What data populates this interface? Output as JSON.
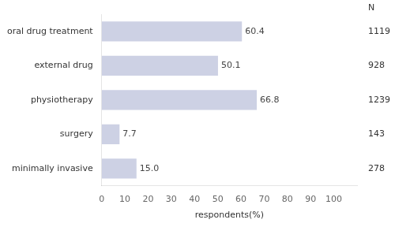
{
  "chart_data": {
    "type": "bar",
    "orientation": "horizontal",
    "categories": [
      "oral drug treatment",
      "external drug",
      "physiotherapy",
      "surgery",
      "minimally invasive"
    ],
    "values": [
      60.4,
      50.1,
      66.8,
      7.7,
      15.0
    ],
    "value_labels": [
      "60.4",
      "50.1",
      "66.8",
      "7.7",
      "15.0"
    ],
    "data_labels": true,
    "color": "#cdd1e4",
    "xlabel": "respondents(%)",
    "xlim": [
      0,
      110
    ],
    "xticks": [
      0,
      10,
      20,
      30,
      40,
      50,
      60,
      70,
      80,
      90,
      100
    ],
    "grid": false,
    "n_label": "N",
    "n_values": [
      1119,
      928,
      1239,
      143,
      278
    ]
  }
}
